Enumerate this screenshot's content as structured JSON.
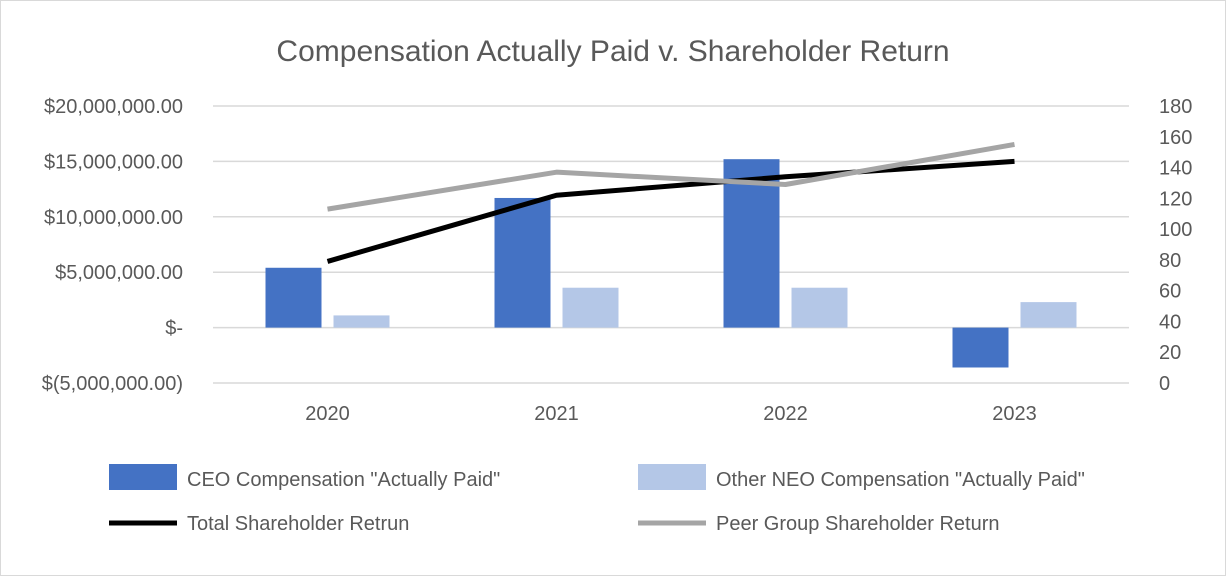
{
  "chart_data": {
    "type": "bar",
    "title": "Compensation Actually Paid v. Shareholder Return",
    "categories": [
      "2020",
      "2021",
      "2022",
      "2023"
    ],
    "series": [
      {
        "name": "CEO Compensation \"Actually Paid\"",
        "type": "bar",
        "axis": "left",
        "color": "#4472c4",
        "values": [
          5400000,
          11700000,
          15200000,
          -3600000
        ]
      },
      {
        "name": "Other NEO Compensation \"Actually Paid\"",
        "type": "bar",
        "axis": "left",
        "color": "#b4c7e7",
        "values": [
          1100000,
          3600000,
          3600000,
          2300000
        ]
      },
      {
        "name": "Total Shareholder Retrun",
        "type": "line",
        "axis": "right",
        "color": "#000000",
        "values": [
          79,
          122,
          134,
          144
        ]
      },
      {
        "name": "Peer Group Shareholder Return",
        "type": "line",
        "axis": "right",
        "color": "#a5a5a5",
        "values": [
          113,
          137,
          129,
          155
        ]
      }
    ],
    "left_axis": {
      "range": [
        -5000000,
        20000000
      ],
      "ticks": [
        20000000,
        15000000,
        10000000,
        5000000,
        0,
        -5000000
      ],
      "tick_labels": [
        "$20,000,000.00",
        "$15,000,000.00",
        "$10,000,000.00",
        "$5,000,000.00",
        "$-",
        "$(5,000,000.00)"
      ]
    },
    "right_axis": {
      "range": [
        0,
        180
      ],
      "ticks": [
        180,
        160,
        140,
        120,
        100,
        80,
        60,
        40,
        20,
        0
      ],
      "tick_labels": [
        "180",
        "160",
        "140",
        "120",
        "100",
        "80",
        "60",
        "40",
        "20",
        "0"
      ]
    },
    "grid": true,
    "legend": "bottom"
  }
}
